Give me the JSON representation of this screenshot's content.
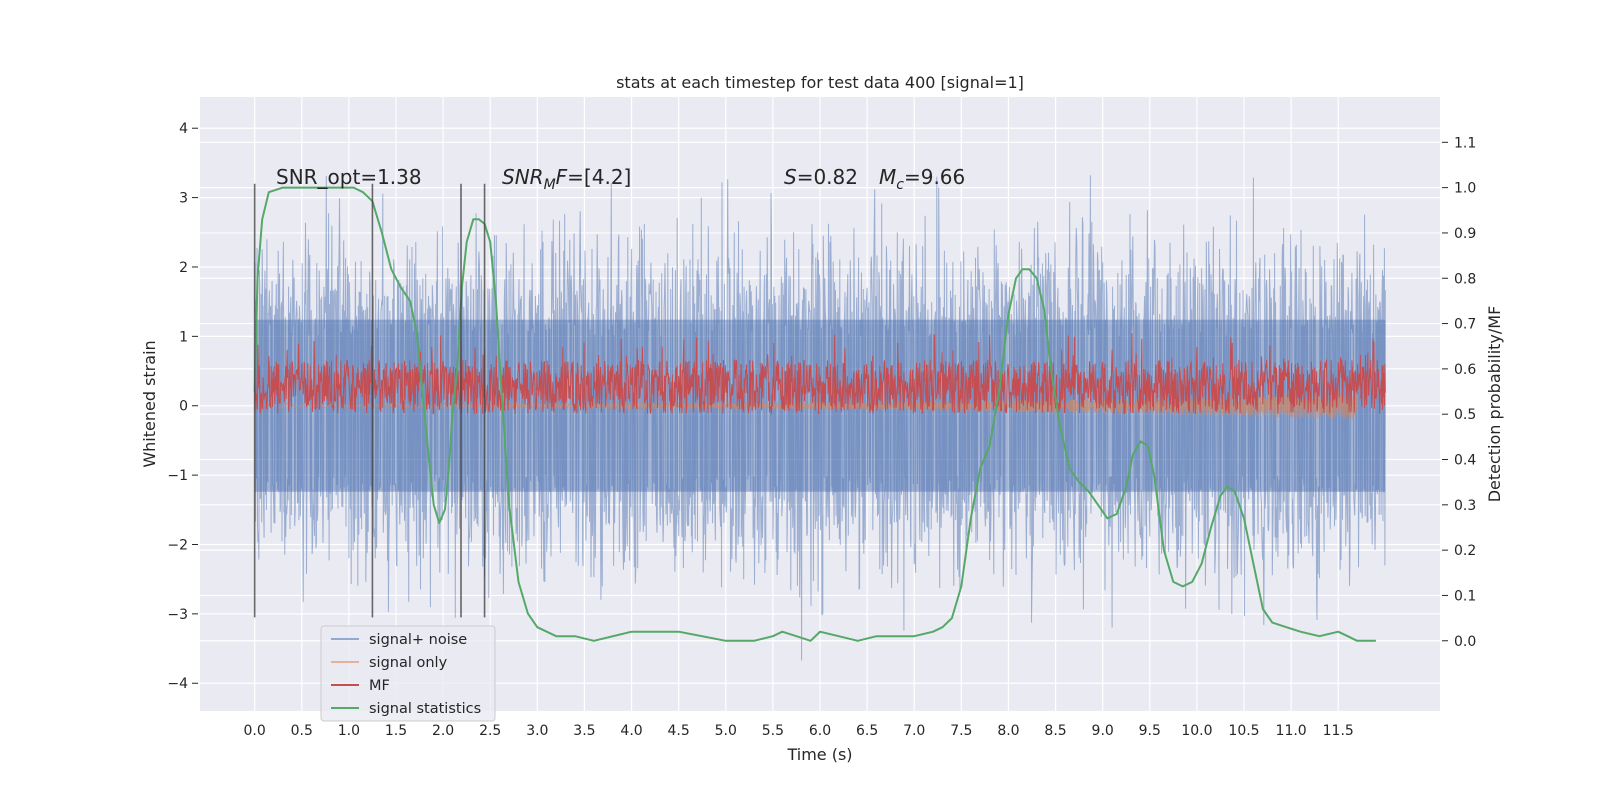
{
  "chart_data": {
    "type": "line",
    "title": "stats at each timestep for test data 400 [signal=1]",
    "xlabel": "Time (s)",
    "ylabel": "Whitened strain",
    "y2label": "Detection probability/MF",
    "xlim": [
      -0.58,
      12.58
    ],
    "ylim": [
      -4.4,
      4.45
    ],
    "y2lim": [
      -0.155,
      1.2
    ],
    "x_ticks": [
      "0.0",
      "0.5",
      "1.0",
      "1.5",
      "2.0",
      "2.5",
      "3.0",
      "3.5",
      "4.0",
      "4.5",
      "5.0",
      "5.5",
      "6.0",
      "6.5",
      "7.0",
      "7.5",
      "8.0",
      "8.5",
      "9.0",
      "9.5",
      "10.0",
      "10.5",
      "11.0",
      "11.5"
    ],
    "y_ticks": [
      "−4",
      "−3",
      "−2",
      "−1",
      "0",
      "1",
      "2",
      "3",
      "4"
    ],
    "y2_ticks": [
      "0.0",
      "0.1",
      "0.2",
      "0.3",
      "0.4",
      "0.5",
      "0.6",
      "0.7",
      "0.8",
      "0.9",
      "1.0",
      "1.1"
    ],
    "grid": true,
    "legend_position": "lower-left",
    "annotations": {
      "snr_opt": "SNR_opt=1.38",
      "snr_mf_italic": "SNR",
      "snr_mf_sub": "M",
      "snr_mf_italic2": "F",
      "snr_mf_rest": "=[4.2]",
      "s_italic": "S",
      "s_rest": "=0.82",
      "mc_italic": "M",
      "mc_sub": "c",
      "mc_rest": "=9.66"
    },
    "vertical_lines_x": [
      0.0,
      1.25,
      2.19,
      2.44
    ],
    "vertical_lines_range": [
      -3.05,
      3.2
    ],
    "series": [
      {
        "name": "signal+ noise",
        "color": "#4c72b0",
        "kind": "noise",
        "x_range": [
          0.0,
          12.0
        ],
        "envelope_y": [
          -2.0,
          2.0
        ],
        "peak_range": [
          -3.9,
          4.1
        ]
      },
      {
        "name": "signal only",
        "color": "#dd8452",
        "kind": "chirp",
        "x_range": [
          0.0,
          11.7
        ],
        "amplitude_range": [
          0.03,
          0.2
        ]
      },
      {
        "name": "MF",
        "color": "#c44e52",
        "kind": "band",
        "x_range": [
          0.0,
          12.0
        ],
        "y_range_right_axis": [
          0.5,
          0.62
        ],
        "peak_right_axis": 0.68
      },
      {
        "name": "signal statistics",
        "color": "#55a868",
        "axis": "right",
        "x": [
          0.0,
          0.03,
          0.08,
          0.15,
          0.3,
          0.6,
          0.9,
          1.05,
          1.15,
          1.25,
          1.35,
          1.45,
          1.55,
          1.65,
          1.72,
          1.78,
          1.85,
          1.9,
          1.96,
          2.02,
          2.06,
          2.1,
          2.15,
          2.2,
          2.25,
          2.32,
          2.38,
          2.44,
          2.5,
          2.56,
          2.62,
          2.7,
          2.8,
          2.9,
          3.0,
          3.2,
          3.4,
          3.6,
          4.0,
          4.5,
          5.0,
          5.3,
          5.5,
          5.6,
          5.75,
          5.9,
          6.0,
          6.2,
          6.4,
          6.6,
          6.8,
          7.0,
          7.2,
          7.3,
          7.4,
          7.5,
          7.6,
          7.7,
          7.8,
          7.9,
          8.0,
          8.08,
          8.15,
          8.22,
          8.3,
          8.38,
          8.45,
          8.55,
          8.65,
          8.75,
          8.85,
          8.95,
          9.05,
          9.15,
          9.25,
          9.32,
          9.4,
          9.48,
          9.55,
          9.65,
          9.75,
          9.85,
          9.95,
          10.05,
          10.15,
          10.25,
          10.32,
          10.4,
          10.5,
          10.6,
          10.7,
          10.8,
          10.95,
          11.1,
          11.3,
          11.5,
          11.6,
          11.7,
          11.8,
          11.9
        ],
        "y": [
          0.55,
          0.8,
          0.93,
          0.99,
          1.0,
          1.0,
          1.0,
          1.0,
          0.99,
          0.97,
          0.9,
          0.82,
          0.78,
          0.75,
          0.68,
          0.55,
          0.4,
          0.3,
          0.26,
          0.29,
          0.38,
          0.5,
          0.6,
          0.78,
          0.88,
          0.93,
          0.93,
          0.92,
          0.88,
          0.75,
          0.55,
          0.3,
          0.13,
          0.06,
          0.03,
          0.01,
          0.01,
          0.0,
          0.02,
          0.02,
          0.0,
          0.0,
          0.01,
          0.02,
          0.01,
          0.0,
          0.02,
          0.01,
          0.0,
          0.01,
          0.01,
          0.01,
          0.02,
          0.03,
          0.05,
          0.12,
          0.27,
          0.38,
          0.43,
          0.55,
          0.72,
          0.8,
          0.82,
          0.82,
          0.8,
          0.73,
          0.6,
          0.47,
          0.38,
          0.35,
          0.33,
          0.3,
          0.27,
          0.28,
          0.34,
          0.41,
          0.44,
          0.43,
          0.36,
          0.2,
          0.13,
          0.12,
          0.13,
          0.17,
          0.25,
          0.32,
          0.34,
          0.33,
          0.27,
          0.17,
          0.07,
          0.04,
          0.03,
          0.02,
          0.01,
          0.02,
          0.01,
          0.0,
          0.0,
          0.0
        ]
      }
    ]
  }
}
